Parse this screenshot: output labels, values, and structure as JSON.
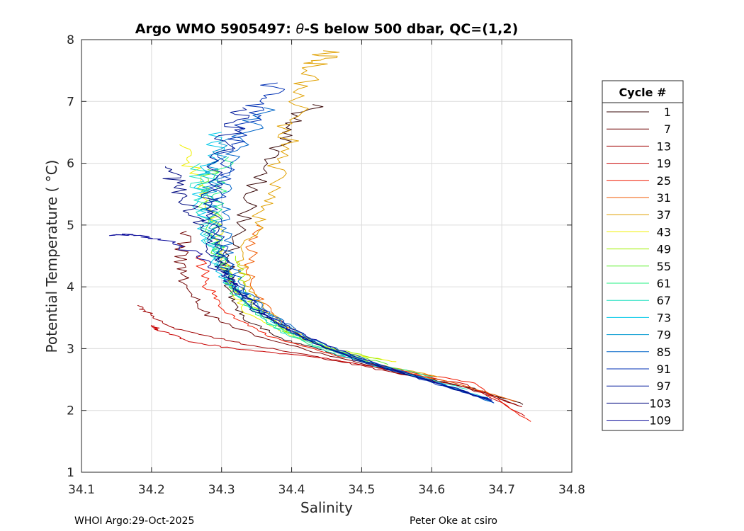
{
  "figure": {
    "footer_left": "WHOI Argo:29-Oct-2025",
    "footer_right": "Peter Oke at csiro"
  },
  "chart_data": {
    "type": "line",
    "title_prefix": "Argo WMO 5905497: ",
    "title_symbol": "θ",
    "title_suffix": "-S below 500 dbar,  QC=(1,2)",
    "xlabel": "Salinity",
    "ylabel": "Potential Temperature ( °C)",
    "xlim": [
      34.1,
      34.8
    ],
    "ylim": [
      1,
      8
    ],
    "xticks": [
      "34.1",
      "34.2",
      "34.3",
      "34.4",
      "34.5",
      "34.6",
      "34.7",
      "34.8"
    ],
    "yticks": [
      "1",
      "2",
      "3",
      "4",
      "5",
      "6",
      "7",
      "8"
    ],
    "grid": true,
    "legend": {
      "title": "Cycle #",
      "placement": "outside-right",
      "entries": [
        {
          "label": "1",
          "color": "#3a0a0a"
        },
        {
          "label": "7",
          "color": "#6e0000"
        },
        {
          "label": "13",
          "color": "#a00000"
        },
        {
          "label": "19",
          "color": "#c80000"
        },
        {
          "label": "25",
          "color": "#f01800"
        },
        {
          "label": "31",
          "color": "#f05a00"
        },
        {
          "label": "37",
          "color": "#e0a000"
        },
        {
          "label": "43",
          "color": "#f0f000"
        },
        {
          "label": "49",
          "color": "#a0f000"
        },
        {
          "label": "55",
          "color": "#60f030"
        },
        {
          "label": "61",
          "color": "#20f080"
        },
        {
          "label": "67",
          "color": "#20e0c0"
        },
        {
          "label": "73",
          "color": "#00c8e8"
        },
        {
          "label": "79",
          "color": "#0098d0"
        },
        {
          "label": "85",
          "color": "#0064c8"
        },
        {
          "label": "91",
          "color": "#0030b4"
        },
        {
          "label": "97",
          "color": "#00189a"
        },
        {
          "label": "103",
          "color": "#000a80"
        },
        {
          "label": "109",
          "color": "#0a0a9a"
        }
      ]
    },
    "series": [
      {
        "name": "1",
        "color": "#3a0a0a",
        "points": [
          [
            34.73,
            2.1
          ],
          [
            34.66,
            2.35
          ],
          [
            34.56,
            2.6
          ],
          [
            34.47,
            2.88
          ],
          [
            34.39,
            3.15
          ],
          [
            34.33,
            3.5
          ],
          [
            34.31,
            3.9
          ],
          [
            34.31,
            4.4
          ],
          [
            34.33,
            5.1
          ],
          [
            34.36,
            5.9
          ],
          [
            34.39,
            6.5
          ],
          [
            34.43,
            6.95
          ]
        ]
      },
      {
        "name": "7",
        "color": "#6e0000",
        "points": [
          [
            34.725,
            2.08
          ],
          [
            34.65,
            2.38
          ],
          [
            34.55,
            2.62
          ],
          [
            34.45,
            2.9
          ],
          [
            34.35,
            3.2
          ],
          [
            34.28,
            3.55
          ],
          [
            34.25,
            3.95
          ],
          [
            34.24,
            4.4
          ],
          [
            34.25,
            4.9
          ]
        ]
      },
      {
        "name": "13",
        "color": "#a00000",
        "points": [
          [
            34.73,
            2.05
          ],
          [
            34.64,
            2.4
          ],
          [
            34.53,
            2.65
          ],
          [
            34.43,
            2.88
          ],
          [
            34.33,
            3.08
          ],
          [
            34.24,
            3.3
          ],
          [
            34.2,
            3.55
          ],
          [
            34.18,
            3.7
          ]
        ]
      },
      {
        "name": "19",
        "color": "#c80000",
        "points": [
          [
            34.735,
            1.9
          ],
          [
            34.65,
            2.42
          ],
          [
            34.54,
            2.66
          ],
          [
            34.44,
            2.86
          ],
          [
            34.33,
            2.98
          ],
          [
            34.26,
            3.1
          ],
          [
            34.21,
            3.3
          ],
          [
            34.2,
            3.38
          ]
        ]
      },
      {
        "name": "25",
        "color": "#f01800",
        "points": [
          [
            34.74,
            1.82
          ],
          [
            34.66,
            2.44
          ],
          [
            34.56,
            2.64
          ],
          [
            34.46,
            2.9
          ],
          [
            34.37,
            3.2
          ],
          [
            34.31,
            3.55
          ],
          [
            34.28,
            4.0
          ],
          [
            34.27,
            4.5
          ]
        ]
      },
      {
        "name": "31",
        "color": "#f05a00",
        "points": [
          [
            34.72,
            2.15
          ],
          [
            34.63,
            2.45
          ],
          [
            34.53,
            2.7
          ],
          [
            34.45,
            3.0
          ],
          [
            34.39,
            3.35
          ],
          [
            34.35,
            3.85
          ],
          [
            34.34,
            4.4
          ],
          [
            34.35,
            5.0
          ]
        ]
      },
      {
        "name": "37",
        "color": "#e0a000",
        "points": [
          [
            34.61,
            2.55
          ],
          [
            34.52,
            2.75
          ],
          [
            34.44,
            3.05
          ],
          [
            34.38,
            3.45
          ],
          [
            34.34,
            3.9
          ],
          [
            34.33,
            4.4
          ],
          [
            34.35,
            5.0
          ],
          [
            34.37,
            5.6
          ],
          [
            34.39,
            6.3
          ],
          [
            34.41,
            7.0
          ],
          [
            34.44,
            7.6
          ],
          [
            34.445,
            7.82
          ]
        ]
      },
      {
        "name": "43",
        "color": "#f0f000",
        "points": [
          [
            34.55,
            2.78
          ],
          [
            34.47,
            2.95
          ],
          [
            34.4,
            3.2
          ],
          [
            34.34,
            3.55
          ],
          [
            34.31,
            4.0
          ],
          [
            34.3,
            4.6
          ],
          [
            34.29,
            5.2
          ],
          [
            34.27,
            5.8
          ],
          [
            34.24,
            6.3
          ]
        ]
      },
      {
        "name": "49",
        "color": "#a0f000",
        "points": [
          [
            34.53,
            2.82
          ],
          [
            34.45,
            3.02
          ],
          [
            34.39,
            3.3
          ],
          [
            34.35,
            3.65
          ],
          [
            34.33,
            4.0
          ],
          [
            34.32,
            4.5
          ]
        ]
      },
      {
        "name": "55",
        "color": "#60f030",
        "points": [
          [
            34.54,
            2.74
          ],
          [
            34.46,
            2.98
          ],
          [
            34.39,
            3.3
          ],
          [
            34.34,
            3.7
          ],
          [
            34.31,
            4.1
          ],
          [
            34.29,
            4.7
          ],
          [
            34.28,
            5.3
          ],
          [
            34.28,
            5.9
          ]
        ]
      },
      {
        "name": "61",
        "color": "#20f080",
        "points": [
          [
            34.6,
            2.55
          ],
          [
            34.51,
            2.78
          ],
          [
            34.43,
            3.05
          ],
          [
            34.37,
            3.4
          ],
          [
            34.32,
            3.85
          ],
          [
            34.3,
            4.4
          ],
          [
            34.29,
            5.0
          ],
          [
            34.3,
            5.6
          ],
          [
            34.31,
            6.1
          ]
        ]
      },
      {
        "name": "67",
        "color": "#20e0c0",
        "points": [
          [
            34.65,
            2.35
          ],
          [
            34.55,
            2.62
          ],
          [
            34.46,
            2.92
          ],
          [
            34.38,
            3.3
          ],
          [
            34.33,
            3.8
          ],
          [
            34.3,
            4.3
          ],
          [
            34.28,
            4.9
          ],
          [
            34.27,
            5.5
          ],
          [
            34.27,
            6.0
          ]
        ]
      },
      {
        "name": "73",
        "color": "#00c8e8",
        "points": [
          [
            34.68,
            2.2
          ],
          [
            34.58,
            2.55
          ],
          [
            34.48,
            2.87
          ],
          [
            34.4,
            3.25
          ],
          [
            34.34,
            3.7
          ],
          [
            34.3,
            4.2
          ],
          [
            34.28,
            4.8
          ],
          [
            34.27,
            5.4
          ],
          [
            34.28,
            6.0
          ],
          [
            34.3,
            6.5
          ]
        ]
      },
      {
        "name": "79",
        "color": "#0098d0",
        "points": [
          [
            34.685,
            2.15
          ],
          [
            34.6,
            2.48
          ],
          [
            34.5,
            2.82
          ],
          [
            34.42,
            3.18
          ],
          [
            34.36,
            3.6
          ],
          [
            34.31,
            4.1
          ],
          [
            34.29,
            4.7
          ],
          [
            34.28,
            5.3
          ],
          [
            34.29,
            5.9
          ],
          [
            34.31,
            6.4
          ]
        ]
      },
      {
        "name": "85",
        "color": "#0064c8",
        "points": [
          [
            34.69,
            2.12
          ],
          [
            34.61,
            2.45
          ],
          [
            34.51,
            2.8
          ],
          [
            34.43,
            3.15
          ],
          [
            34.37,
            3.55
          ],
          [
            34.33,
            4.0
          ],
          [
            34.31,
            4.6
          ],
          [
            34.3,
            5.2
          ],
          [
            34.31,
            5.8
          ],
          [
            34.33,
            6.4
          ],
          [
            34.36,
            6.9
          ]
        ]
      },
      {
        "name": "91",
        "color": "#0030b4",
        "points": [
          [
            34.69,
            2.13
          ],
          [
            34.6,
            2.45
          ],
          [
            34.5,
            2.8
          ],
          [
            34.42,
            3.15
          ],
          [
            34.36,
            3.55
          ],
          [
            34.32,
            4.05
          ],
          [
            34.3,
            4.6
          ],
          [
            34.29,
            5.2
          ],
          [
            34.3,
            5.8
          ],
          [
            34.32,
            6.4
          ],
          [
            34.35,
            6.9
          ],
          [
            34.38,
            7.3
          ]
        ]
      },
      {
        "name": "97",
        "color": "#00189a",
        "points": [
          [
            34.685,
            2.16
          ],
          [
            34.6,
            2.47
          ],
          [
            34.49,
            2.82
          ],
          [
            34.41,
            3.2
          ],
          [
            34.35,
            3.6
          ],
          [
            34.31,
            4.1
          ],
          [
            34.29,
            4.7
          ],
          [
            34.28,
            5.3
          ],
          [
            34.29,
            5.9
          ],
          [
            34.31,
            6.5
          ],
          [
            34.33,
            6.9
          ]
        ]
      },
      {
        "name": "103",
        "color": "#000a80",
        "points": [
          [
            34.68,
            2.18
          ],
          [
            34.59,
            2.5
          ],
          [
            34.49,
            2.84
          ],
          [
            34.41,
            3.2
          ],
          [
            34.35,
            3.65
          ],
          [
            34.31,
            4.15
          ],
          [
            34.28,
            4.7
          ],
          [
            34.26,
            5.2
          ],
          [
            34.24,
            5.6
          ],
          [
            34.22,
            5.95
          ]
        ]
      },
      {
        "name": "109",
        "color": "#0a0a9a",
        "points": [
          [
            34.685,
            2.17
          ],
          [
            34.6,
            2.48
          ],
          [
            34.5,
            2.83
          ],
          [
            34.42,
            3.2
          ],
          [
            34.36,
            3.6
          ],
          [
            34.31,
            4.1
          ],
          [
            34.27,
            4.5
          ],
          [
            34.22,
            4.75
          ],
          [
            34.17,
            4.85
          ],
          [
            34.14,
            4.83
          ]
        ]
      }
    ]
  }
}
